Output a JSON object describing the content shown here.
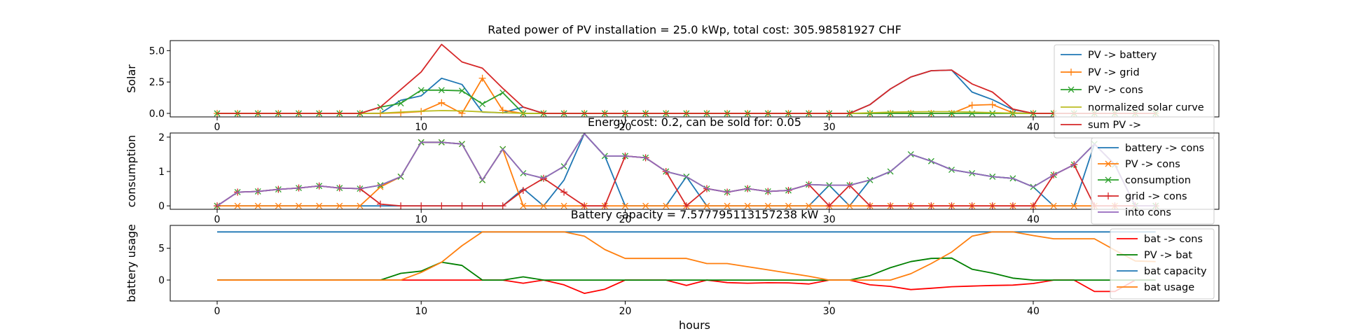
{
  "figure": {
    "xlabel": "hours"
  },
  "chart_data": [
    {
      "type": "line",
      "title": "Rated power of PV installation = 25.0 kWp, total cost: 305.98581927 CHF",
      "xlabel": "",
      "ylabel": "Solar",
      "xlim": [
        -2.3,
        49.1
      ],
      "ylim": [
        -0.28,
        5.8
      ],
      "xticks": [
        0,
        10,
        20,
        30,
        40
      ],
      "yticks": [
        0.0,
        2.5,
        5.0
      ],
      "ytick_labels": [
        "0.0",
        "2.5",
        "5.0"
      ],
      "legend_position": "right",
      "grid": false,
      "x": [
        0,
        1,
        2,
        3,
        4,
        5,
        6,
        7,
        8,
        9,
        10,
        11,
        12,
        13,
        14,
        15,
        16,
        17,
        18,
        19,
        20,
        21,
        22,
        23,
        24,
        25,
        26,
        27,
        28,
        29,
        30,
        31,
        32,
        33,
        34,
        35,
        36,
        37,
        38,
        39,
        40,
        41,
        42,
        43,
        44,
        45,
        46
      ],
      "series": [
        {
          "name": "PV -> battery",
          "color": "#1f77b4",
          "marker": "none",
          "values": [
            0,
            0,
            0,
            0,
            0,
            0,
            0,
            0,
            0,
            1.05,
            1.4,
            2.8,
            2.3,
            0.1,
            0.05,
            0.5,
            0,
            0,
            0,
            0,
            0,
            0,
            0,
            0,
            0,
            0,
            0,
            0,
            0,
            0,
            0,
            0,
            0.7,
            1.95,
            2.9,
            3.4,
            3.45,
            1.7,
            1.1,
            0.3,
            0,
            0,
            0,
            0,
            0,
            0,
            0
          ]
        },
        {
          "name": "PV -> grid",
          "color": "#ff7f0e",
          "marker": "plus",
          "values": [
            0,
            0,
            0,
            0,
            0,
            0,
            0,
            0,
            0,
            0.05,
            0.15,
            0.85,
            0,
            2.8,
            0.25,
            0,
            0,
            0,
            0,
            0,
            0,
            0,
            0,
            0,
            0,
            0,
            0,
            0,
            0,
            0,
            0,
            0,
            0,
            0,
            0,
            0,
            0,
            0.65,
            0.7,
            0.05,
            0,
            0,
            0,
            0,
            0,
            0,
            0
          ]
        },
        {
          "name": "PV -> cons",
          "color": "#2ca02c",
          "marker": "x",
          "values": [
            0,
            0,
            0,
            0,
            0,
            0,
            0,
            0,
            0.5,
            0.8,
            1.85,
            1.85,
            1.8,
            0.75,
            1.65,
            0,
            0,
            0,
            0,
            0,
            0,
            0,
            0,
            0,
            0,
            0,
            0,
            0,
            0,
            0,
            0,
            0,
            0,
            0,
            0,
            0,
            0,
            0,
            0,
            0,
            0,
            0,
            0,
            0,
            0,
            0,
            0
          ]
        },
        {
          "name": "normalized solar curve",
          "color": "#bcbd22",
          "marker": "none",
          "values": [
            0,
            0,
            0,
            0,
            0,
            0,
            0,
            0,
            0.02,
            0.1,
            0.18,
            0.22,
            0.2,
            0.12,
            0.05,
            0.01,
            0,
            0,
            0,
            0,
            0,
            0,
            0,
            0,
            0,
            0,
            0,
            0,
            0,
            0,
            0,
            0,
            0.05,
            0.1,
            0.12,
            0.14,
            0.14,
            0.1,
            0.06,
            0.02,
            0,
            0,
            0,
            0,
            0,
            0,
            0
          ]
        },
        {
          "name": "sum PV ->",
          "color": "#d62728",
          "marker": "none",
          "values": [
            0,
            0,
            0,
            0,
            0,
            0,
            0,
            0,
            0.5,
            1.9,
            3.3,
            5.5,
            4.1,
            3.6,
            2.0,
            0.5,
            0,
            0,
            0,
            0,
            0,
            0,
            0,
            0,
            0,
            0,
            0,
            0,
            0,
            0,
            0,
            0,
            0.7,
            1.95,
            2.9,
            3.4,
            3.45,
            2.35,
            1.7,
            0.35,
            0,
            0,
            0,
            0,
            0,
            0,
            0
          ]
        }
      ]
    },
    {
      "type": "line",
      "title": "Energy cost: 0.2, can be sold for: 0.05",
      "xlabel": "",
      "ylabel": "consumption",
      "xlim": [
        -2.3,
        49.1
      ],
      "ylim": [
        -0.1,
        2.12
      ],
      "xticks": [
        0,
        10,
        20,
        30,
        40
      ],
      "yticks": [
        0,
        1,
        2
      ],
      "ytick_labels": [
        "0",
        "1",
        "2"
      ],
      "legend_position": "right",
      "grid": false,
      "x": [
        0,
        1,
        2,
        3,
        4,
        5,
        6,
        7,
        8,
        9,
        10,
        11,
        12,
        13,
        14,
        15,
        16,
        17,
        18,
        19,
        20,
        21,
        22,
        23,
        24,
        25,
        26,
        27,
        28,
        29,
        30,
        31,
        32,
        33,
        34,
        35,
        36,
        37,
        38,
        39,
        40,
        41,
        42,
        43,
        44,
        45,
        46
      ],
      "series": [
        {
          "name": "battery -> cons",
          "color": "#1f77b4",
          "marker": "none",
          "values": [
            0,
            0,
            0,
            0,
            0,
            0,
            0,
            0,
            0,
            0,
            0,
            0,
            0,
            0,
            0,
            0.5,
            0,
            0.75,
            2.1,
            1.45,
            0,
            0,
            0,
            0.85,
            0,
            0,
            0,
            0,
            0,
            0,
            0.6,
            0,
            0.75,
            1.0,
            1.5,
            1.3,
            1.05,
            0.95,
            0.85,
            0.8,
            0.55,
            0,
            0,
            1.8,
            1.2,
            0,
            0
          ]
        },
        {
          "name": "PV -> cons",
          "color": "#ff7f0e",
          "marker": "x",
          "values": [
            0,
            0,
            0,
            0,
            0,
            0,
            0,
            0,
            0.55,
            0.85,
            1.85,
            1.85,
            1.8,
            0.75,
            1.65,
            0,
            0,
            0,
            0,
            0,
            0,
            0,
            0,
            0,
            0,
            0,
            0,
            0,
            0,
            0,
            0,
            0,
            0,
            0,
            0,
            0,
            0,
            0,
            0,
            0,
            0,
            0,
            0,
            0,
            0,
            0,
            0
          ]
        },
        {
          "name": "consumption",
          "color": "#2ca02c",
          "marker": "x",
          "values": [
            0,
            0.4,
            0.42,
            0.48,
            0.52,
            0.58,
            0.52,
            0.5,
            0.6,
            0.85,
            1.85,
            1.85,
            1.8,
            0.75,
            1.65,
            0.95,
            0.8,
            1.15,
            2.1,
            1.45,
            1.45,
            1.4,
            1.0,
            0.85,
            0.5,
            0.4,
            0.5,
            0.42,
            0.45,
            0.62,
            0.6,
            0.6,
            0.75,
            1.0,
            1.5,
            1.3,
            1.05,
            0.95,
            0.85,
            0.8,
            0.55,
            0.9,
            1.2,
            1.8,
            1.2,
            0,
            0
          ]
        },
        {
          "name": "grid -> cons",
          "color": "#d62728",
          "marker": "plus",
          "values": [
            0,
            0.4,
            0.42,
            0.48,
            0.52,
            0.58,
            0.52,
            0.5,
            0.05,
            0,
            0,
            0,
            0,
            0,
            0,
            0.45,
            0.8,
            0.4,
            0,
            0,
            1.45,
            1.4,
            1.0,
            0,
            0.5,
            0.4,
            0.5,
            0.42,
            0.45,
            0.62,
            0,
            0.6,
            0,
            0,
            0,
            0,
            0,
            0,
            0,
            0,
            0,
            0.9,
            1.2,
            0,
            0,
            0,
            0
          ]
        },
        {
          "name": "into cons",
          "color": "#9467bd",
          "marker": "none",
          "values": [
            0,
            0.4,
            0.42,
            0.48,
            0.52,
            0.58,
            0.52,
            0.5,
            0.6,
            0.85,
            1.85,
            1.85,
            1.8,
            0.75,
            1.65,
            0.95,
            0.8,
            1.15,
            2.1,
            1.45,
            1.45,
            1.4,
            1.0,
            0.85,
            0.5,
            0.4,
            0.5,
            0.42,
            0.45,
            0.62,
            0.6,
            0.6,
            0.75,
            1.0,
            1.5,
            1.3,
            1.05,
            0.95,
            0.85,
            0.8,
            0.55,
            0.9,
            1.2,
            1.8,
            1.2,
            0,
            0
          ]
        }
      ]
    },
    {
      "type": "line",
      "title": "Battery capacity = 7.577795113157238 kW",
      "xlabel": "hours",
      "ylabel": "battery usage",
      "xlim": [
        -2.3,
        49.1
      ],
      "ylim": [
        -3.3,
        8.6
      ],
      "xticks": [
        0,
        10,
        20,
        30,
        40
      ],
      "yticks": [
        0,
        5
      ],
      "ytick_labels": [
        "0",
        "5"
      ],
      "legend_position": "right",
      "grid": false,
      "x": [
        0,
        1,
        2,
        3,
        4,
        5,
        6,
        7,
        8,
        9,
        10,
        11,
        12,
        13,
        14,
        15,
        16,
        17,
        18,
        19,
        20,
        21,
        22,
        23,
        24,
        25,
        26,
        27,
        28,
        29,
        30,
        31,
        32,
        33,
        34,
        35,
        36,
        37,
        38,
        39,
        40,
        41,
        42,
        43,
        44,
        45,
        46
      ],
      "series": [
        {
          "name": "bat -> cons",
          "color": "#ff0000",
          "marker": "none",
          "values": [
            0,
            0,
            0,
            0,
            0,
            0,
            0,
            0,
            0,
            0,
            0,
            0,
            0,
            0,
            0,
            -0.5,
            0,
            -0.75,
            -2.1,
            -1.45,
            0,
            0,
            0,
            -0.85,
            0,
            -0.4,
            -0.5,
            -0.42,
            -0.45,
            -0.62,
            0,
            0,
            -0.75,
            -1.0,
            -1.5,
            -1.3,
            -1.05,
            -0.95,
            -0.85,
            -0.8,
            -0.55,
            0,
            0,
            -1.8,
            -1.8,
            0,
            0
          ]
        },
        {
          "name": "PV -> bat",
          "color": "#008000",
          "marker": "none",
          "values": [
            0,
            0,
            0,
            0,
            0,
            0,
            0,
            0,
            0,
            1.05,
            1.4,
            2.8,
            2.3,
            0,
            0,
            0.5,
            0,
            0,
            0,
            0,
            0,
            0,
            0,
            0,
            0,
            0,
            0,
            0,
            0,
            0,
            0,
            0,
            0.7,
            1.95,
            2.9,
            3.4,
            3.45,
            1.7,
            1.1,
            0.3,
            0,
            0,
            0,
            0,
            0,
            0,
            0
          ]
        },
        {
          "name": "bat capacity",
          "color": "#1f77b4",
          "marker": "none",
          "values": [
            7.58,
            7.58,
            7.58,
            7.58,
            7.58,
            7.58,
            7.58,
            7.58,
            7.58,
            7.58,
            7.58,
            7.58,
            7.58,
            7.58,
            7.58,
            7.58,
            7.58,
            7.58,
            7.58,
            7.58,
            7.58,
            7.58,
            7.58,
            7.58,
            7.58,
            7.58,
            7.58,
            7.58,
            7.58,
            7.58,
            7.58,
            7.58,
            7.58,
            7.58,
            7.58,
            7.58,
            7.58,
            7.58,
            7.58,
            7.58,
            7.58,
            7.58,
            7.58,
            7.58,
            7.58,
            7.58,
            7.58
          ]
        },
        {
          "name": "bat usage",
          "color": "#ff7f0e",
          "marker": "none",
          "values": [
            0,
            0,
            0,
            0,
            0,
            0,
            0,
            0,
            0,
            0,
            1.2,
            2.8,
            5.4,
            7.58,
            7.58,
            7.58,
            7.58,
            7.58,
            6.9,
            4.8,
            3.4,
            3.4,
            3.4,
            3.4,
            2.6,
            2.6,
            2.1,
            1.6,
            1.1,
            0.6,
            0,
            0,
            0,
            0,
            1.0,
            2.6,
            4.4,
            6.9,
            7.58,
            7.58,
            7.0,
            6.5,
            6.5,
            6.5,
            4.7,
            3.0,
            2.9
          ]
        }
      ]
    }
  ]
}
